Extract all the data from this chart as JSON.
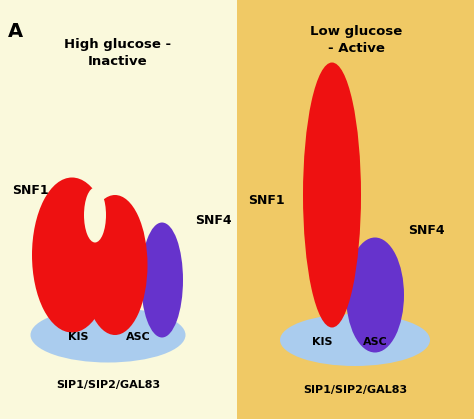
{
  "bg_left": "#FAF9DC",
  "bg_right": "#F0C965",
  "red_color": "#EE1111",
  "blue_color": "#6633CC",
  "lightblue_color": "#AACCEE",
  "text_color": "#000000",
  "panel_label": "A",
  "left_title_line1": "High glucose -",
  "left_title_line2": "Inactive",
  "right_title_line1": "Low glucose",
  "right_title_line2": "- Active",
  "snf1_label": "SNF1",
  "snf4_label": "SNF4",
  "kis_label": "KIS",
  "asc_label": "ASC",
  "bottom_label": "SIP1/SIP2/GAL83"
}
